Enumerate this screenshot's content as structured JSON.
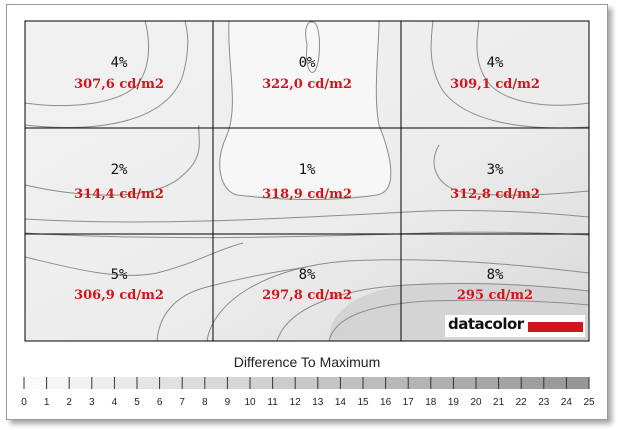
{
  "chart_data": {
    "type": "heatmap",
    "rows": 3,
    "cols": 3,
    "cells": [
      [
        {
          "pct": "4%",
          "lum": "307,6 cd/m2"
        },
        {
          "pct": "0%",
          "lum": "322,0 cd/m2"
        },
        {
          "pct": "4%",
          "lum": "309,1 cd/m2"
        }
      ],
      [
        {
          "pct": "2%",
          "lum": "314,4 cd/m2"
        },
        {
          "pct": "1%",
          "lum": "318,9 cd/m2"
        },
        {
          "pct": "3%",
          "lum": "312,8 cd/m2"
        }
      ],
      [
        {
          "pct": "5%",
          "lum": "306,9 cd/m2"
        },
        {
          "pct": "8%",
          "lum": "297,8 cd/m2"
        },
        {
          "pct": "8%",
          "lum": "295 cd/m2"
        }
      ]
    ],
    "legend": {
      "title": "Difference To Maximum",
      "min": 0,
      "max": 25,
      "ticks": [
        "0",
        "1",
        "2",
        "3",
        "4",
        "5",
        "6",
        "7",
        "8",
        "9",
        "10",
        "11",
        "12",
        "13",
        "14",
        "15",
        "16",
        "17",
        "18",
        "19",
        "20",
        "21",
        "22",
        "23",
        "24",
        "25"
      ]
    }
  },
  "brand": {
    "text": "datacolor",
    "accent": "#d0161c"
  },
  "colors": {
    "value_text": "#d0161c",
    "grid": "#000000",
    "contour": "#8c8c8c"
  }
}
